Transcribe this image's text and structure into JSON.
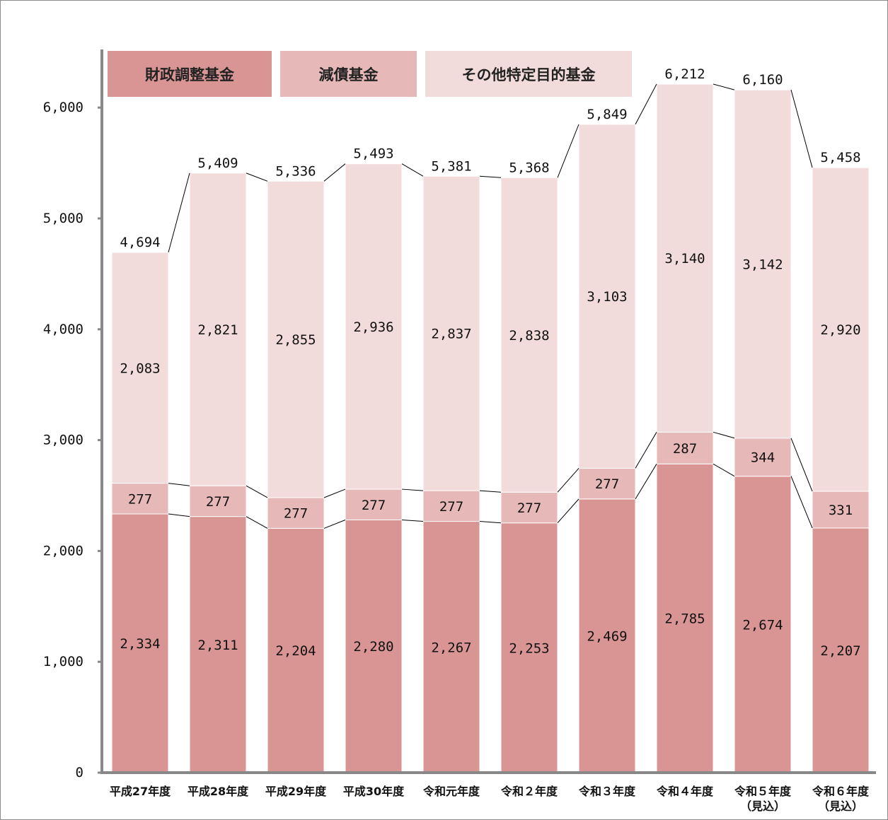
{
  "chart_data": {
    "type": "bar",
    "stacked": true,
    "categories": [
      [
        "平成27年度"
      ],
      [
        "平成28年度"
      ],
      [
        "平成29年度"
      ],
      [
        "平成30年度"
      ],
      [
        "令和元年度"
      ],
      [
        "令和２年度"
      ],
      [
        "令和３年度"
      ],
      [
        "令和４年度"
      ],
      [
        "令和５年度",
        "（見込）"
      ],
      [
        "令和６年度",
        "（見込）"
      ]
    ],
    "series": [
      {
        "name": "財政調整基金",
        "color": "#d99594",
        "values": [
          2334,
          2311,
          2204,
          2280,
          2267,
          2253,
          2469,
          2785,
          2674,
          2207
        ]
      },
      {
        "name": "減債基金",
        "color": "#e6b8b7",
        "values": [
          277,
          277,
          277,
          277,
          277,
          277,
          277,
          287,
          344,
          331
        ]
      },
      {
        "name": "その他特定目的基金",
        "color": "#f2dcdb",
        "values": [
          2083,
          2821,
          2855,
          2936,
          2837,
          2838,
          3103,
          3140,
          3142,
          2920
        ]
      }
    ],
    "totals": [
      4694,
      5409,
      5336,
      5493,
      5381,
      5368,
      5849,
      6212,
      6160,
      5458
    ],
    "yticks": [
      0,
      1000,
      2000,
      3000,
      4000,
      5000,
      6000
    ],
    "ylim": [
      0,
      7000
    ],
    "legend_position": "top-left",
    "grid": false
  }
}
